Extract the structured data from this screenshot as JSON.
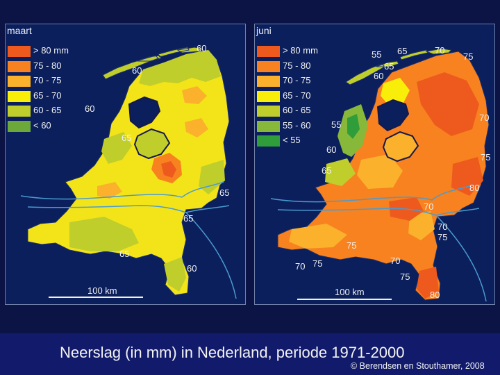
{
  "colors": {
    "gt80": "#ee5a1e",
    "c75_80": "#f7821f",
    "c70_75": "#fbb12b",
    "c65_70": "#f8ee0a",
    "c60_65": "#c0ce2c",
    "c55_60": "#88b83a",
    "lt55": "#2e9d3a",
    "lt60": "#6ca93a",
    "background": "#0c1446",
    "panel": "#0b1f5c",
    "footer": "#121b6b",
    "water": "#4a9bd0"
  },
  "maart": {
    "title": "maart",
    "legend": [
      {
        "label": "> 80 mm",
        "color": "#ee5a1e"
      },
      {
        "label": "75 - 80",
        "color": "#f7821f"
      },
      {
        "label": "70 - 75",
        "color": "#fbb12b"
      },
      {
        "label": "65 - 70",
        "color": "#f8ee0a"
      },
      {
        "label": "60 - 65",
        "color": "#c0ce2c"
      },
      {
        "label": "< 60",
        "color": "#6ca93a"
      }
    ],
    "labels": [
      "60",
      "60",
      "60",
      "65",
      "65",
      "65",
      "65",
      "60"
    ],
    "scale": "100 km"
  },
  "juni": {
    "title": "juni",
    "legend": [
      {
        "label": "> 80 mm",
        "color": "#ee5a1e"
      },
      {
        "label": "75 - 80",
        "color": "#f7821f"
      },
      {
        "label": "70 - 75",
        "color": "#fbb12b"
      },
      {
        "label": "65 - 70",
        "color": "#f8ee0a"
      },
      {
        "label": "60 - 65",
        "color": "#c0ce2c"
      },
      {
        "label": "55 - 60",
        "color": "#88b83a"
      },
      {
        "label": "< 55",
        "color": "#2e9d3a"
      }
    ],
    "labels": [
      "55",
      "65",
      "70",
      "75",
      "65",
      "60",
      "70",
      "55",
      "60",
      "75",
      "65",
      "80",
      "70",
      "70",
      "75",
      "75",
      "70",
      "75",
      "70",
      "75",
      "80"
    ],
    "scale": "100 km"
  },
  "caption": "Neerslag (in mm) in Nederland, periode 1971-2000",
  "credit": "© Berendsen en Stouthamer, 2008"
}
